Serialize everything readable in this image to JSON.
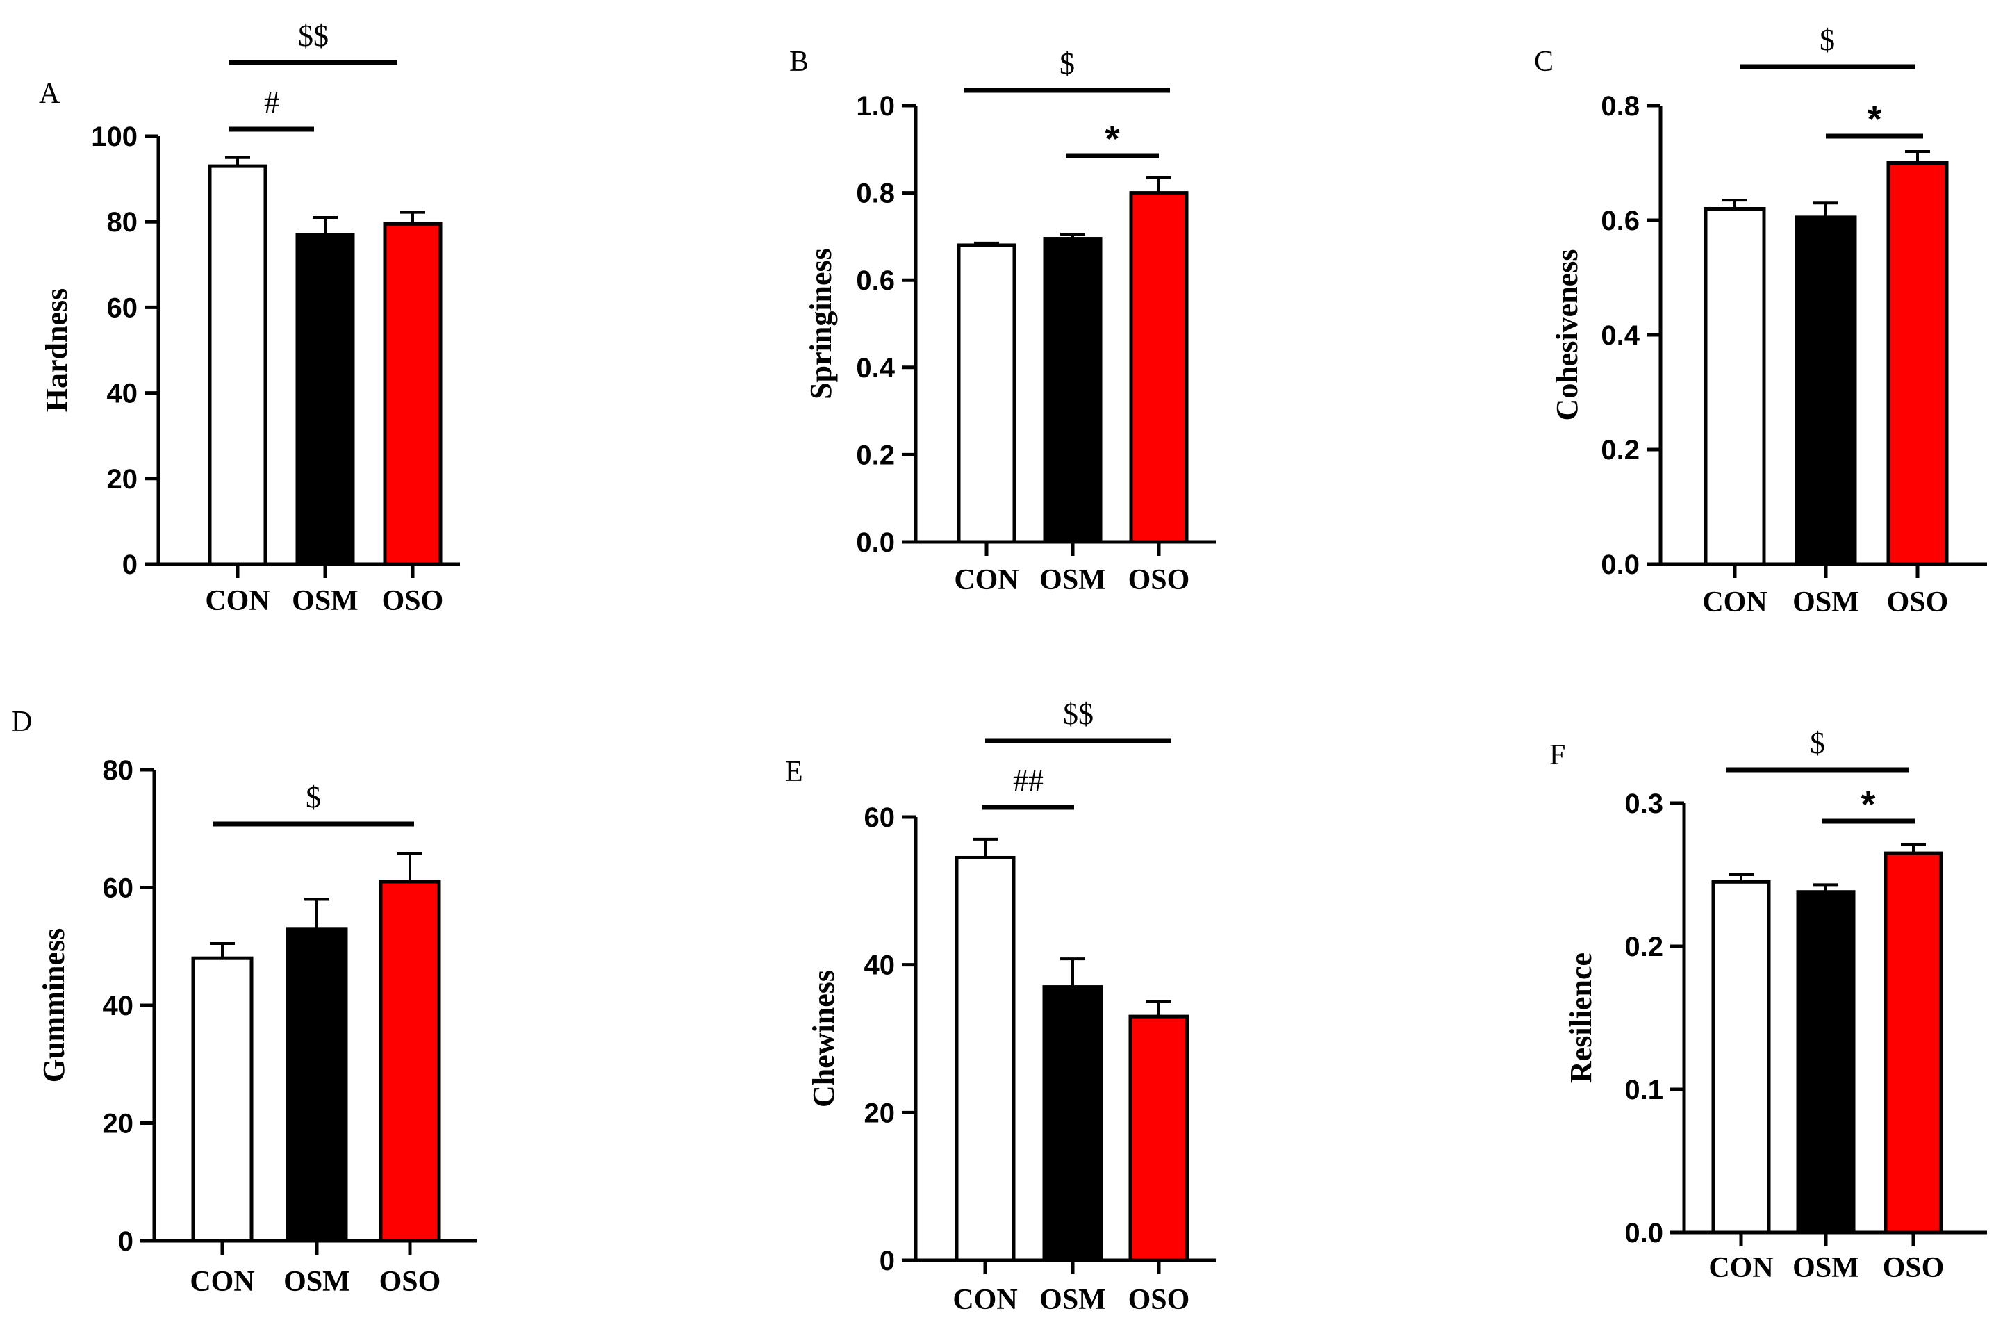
{
  "chart_data": [
    {
      "panel": "A",
      "type": "bar",
      "ylabel": "Hardness",
      "categories": [
        "CON",
        "OSM",
        "OSO"
      ],
      "values": [
        93,
        77,
        79.5
      ],
      "errors": [
        2,
        4,
        2.7
      ],
      "bar_colors": [
        "#ffffff",
        "#000000",
        "#ff0000"
      ],
      "ylim": [
        0,
        100
      ],
      "yticks": [
        0,
        20,
        40,
        60,
        80,
        100
      ],
      "tick_labels": [
        "0",
        "20",
        "40",
        "60",
        "80",
        "100"
      ],
      "significance": [
        {
          "from": 0,
          "to": 2,
          "label": "$$"
        },
        {
          "from": 0,
          "to": 1,
          "label": "#"
        }
      ]
    },
    {
      "panel": "B",
      "type": "bar",
      "ylabel": "Springiness",
      "categories": [
        "CON",
        "OSM",
        "OSO"
      ],
      "values": [
        0.68,
        0.695,
        0.8
      ],
      "errors": [
        0.005,
        0.01,
        0.035
      ],
      "bar_colors": [
        "#ffffff",
        "#000000",
        "#ff0000"
      ],
      "ylim": [
        0,
        1.0
      ],
      "yticks": [
        0,
        0.2,
        0.4,
        0.6,
        0.8,
        1.0
      ],
      "tick_labels": [
        "0.0",
        "0.2",
        "0.4",
        "0.6",
        "0.8",
        "1.0"
      ],
      "significance": [
        {
          "from": 0,
          "to": 2,
          "label": "$"
        },
        {
          "from": 1,
          "to": 2,
          "label": "*"
        }
      ]
    },
    {
      "panel": "C",
      "type": "bar",
      "ylabel": "Cohesiveness",
      "categories": [
        "CON",
        "OSM",
        "OSO"
      ],
      "values": [
        0.62,
        0.605,
        0.7
      ],
      "errors": [
        0.015,
        0.025,
        0.02
      ],
      "bar_colors": [
        "#ffffff",
        "#000000",
        "#ff0000"
      ],
      "ylim": [
        0,
        0.8
      ],
      "yticks": [
        0,
        0.2,
        0.4,
        0.6,
        0.8
      ],
      "tick_labels": [
        "0.0",
        "0.2",
        "0.4",
        "0.6",
        "0.8"
      ],
      "significance": [
        {
          "from": 0,
          "to": 2,
          "label": "$"
        },
        {
          "from": 1,
          "to": 2,
          "label": "*"
        }
      ]
    },
    {
      "panel": "D",
      "type": "bar",
      "ylabel": "Gumminess",
      "categories": [
        "CON",
        "OSM",
        "OSO"
      ],
      "values": [
        48,
        53,
        61
      ],
      "errors": [
        2.5,
        5,
        4.8
      ],
      "bar_colors": [
        "#ffffff",
        "#000000",
        "#ff0000"
      ],
      "ylim": [
        0,
        80
      ],
      "yticks": [
        0,
        20,
        40,
        60,
        80
      ],
      "tick_labels": [
        "0",
        "20",
        "40",
        "60",
        "80"
      ],
      "significance": [
        {
          "from": 0,
          "to": 2,
          "label": "$"
        }
      ]
    },
    {
      "panel": "E",
      "type": "bar",
      "ylabel": "Chewiness",
      "categories": [
        "CON",
        "OSM",
        "OSO"
      ],
      "values": [
        54.5,
        37,
        33
      ],
      "errors": [
        2.5,
        3.8,
        2
      ],
      "bar_colors": [
        "#ffffff",
        "#000000",
        "#ff0000"
      ],
      "ylim": [
        0,
        60
      ],
      "yticks": [
        0,
        20,
        40,
        60
      ],
      "tick_labels": [
        "0",
        "20",
        "40",
        "60"
      ],
      "significance": [
        {
          "from": 0,
          "to": 2,
          "label": "$$"
        },
        {
          "from": 0,
          "to": 1,
          "label": "##"
        }
      ]
    },
    {
      "panel": "F",
      "type": "bar",
      "ylabel": "Resilience",
      "categories": [
        "CON",
        "OSM",
        "OSO"
      ],
      "values": [
        0.245,
        0.238,
        0.265
      ],
      "errors": [
        0.005,
        0.005,
        0.006
      ],
      "bar_colors": [
        "#ffffff",
        "#000000",
        "#ff0000"
      ],
      "ylim": [
        0,
        0.3
      ],
      "yticks": [
        0,
        0.1,
        0.2,
        0.3
      ],
      "tick_labels": [
        "0.0",
        "0.1",
        "0.2",
        "0.3"
      ],
      "significance": [
        {
          "from": 0,
          "to": 2,
          "label": "$"
        },
        {
          "from": 1,
          "to": 2,
          "label": "*"
        }
      ]
    }
  ]
}
